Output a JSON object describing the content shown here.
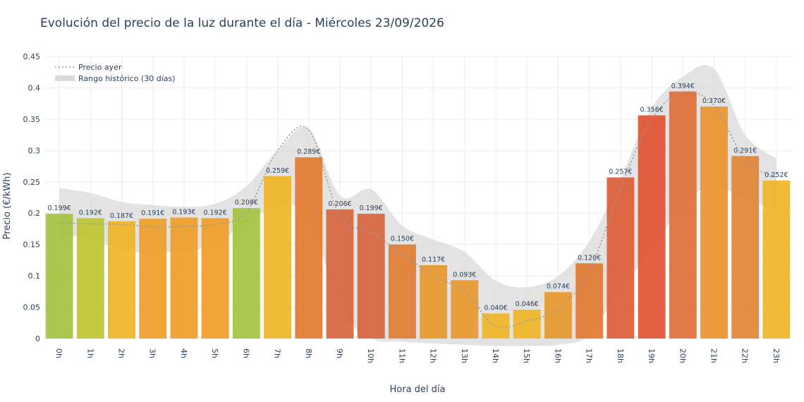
{
  "chart_data": {
    "type": "bar",
    "title": "Evolución del precio de la luz durante el día - Miércoles 23/09/2026",
    "xlabel": "Hora del día",
    "ylabel": "Precio (€/kWh)",
    "ylim": [
      0,
      0.45
    ],
    "yticks": [
      "0",
      "0.05",
      "0.1",
      "0.15",
      "0.2",
      "0.25",
      "0.3",
      "0.35",
      "0.4",
      "0.45"
    ],
    "ytick_values": [
      0,
      0.05,
      0.1,
      0.15,
      0.2,
      0.25,
      0.3,
      0.35,
      0.4,
      0.45
    ],
    "grid": true,
    "legend_position": "top-left",
    "categories": [
      "0h",
      "1h",
      "2h",
      "3h",
      "4h",
      "5h",
      "6h",
      "7h",
      "8h",
      "9h",
      "10h",
      "11h",
      "12h",
      "13h",
      "14h",
      "15h",
      "16h",
      "17h",
      "18h",
      "19h",
      "20h",
      "21h",
      "22h",
      "23h"
    ],
    "values": [
      0.199,
      0.192,
      0.187,
      0.191,
      0.193,
      0.192,
      0.208,
      0.259,
      0.289,
      0.206,
      0.199,
      0.15,
      0.117,
      0.093,
      0.04,
      0.046,
      0.074,
      0.12,
      0.257,
      0.356,
      0.394,
      0.37,
      0.291,
      0.252
    ],
    "bar_labels": [
      "0.199€",
      "0.192€",
      "0.187€",
      "0.191€",
      "0.193€",
      "0.192€",
      "0.208€",
      "0.259€",
      "0.289€",
      "0.206€",
      "0.199€",
      "0.150€",
      "0.117€",
      "0.093€",
      "0.040€",
      "0.046€",
      "0.074€",
      "0.120€",
      "0.257€",
      "0.356€",
      "0.394€",
      "0.370€",
      "0.291€",
      "0.252€"
    ],
    "bar_colors": [
      "#a3c13a",
      "#bcc42e",
      "#eeb420",
      "#ee9b24",
      "#ee9b24",
      "#ee9b24",
      "#a3c13a",
      "#eeb420",
      "#e0782c",
      "#d7603a",
      "#d7603a",
      "#de7a2e",
      "#e89628",
      "#e89628",
      "#eeb420",
      "#eeb420",
      "#e89628",
      "#e0782c",
      "#dc5a32",
      "#e0502c",
      "#e06a32",
      "#eb9028",
      "#e08230",
      "#eeb420"
    ],
    "series": [
      {
        "name": "Precio ayer",
        "style": "dotted-line",
        "color": "#999999",
        "values": [
          0.185,
          0.183,
          0.182,
          0.178,
          0.179,
          0.182,
          0.202,
          0.3,
          0.333,
          0.195,
          0.17,
          0.135,
          0.1,
          0.075,
          0.02,
          0.028,
          0.048,
          0.108,
          0.24,
          0.35,
          0.393,
          0.372,
          0.285,
          0.257
        ]
      },
      {
        "name": "Rango histórico (30 días)",
        "style": "band",
        "color": "#d9d9d9",
        "upper": [
          0.24,
          0.232,
          0.218,
          0.213,
          0.21,
          0.215,
          0.243,
          0.3,
          0.335,
          0.228,
          0.238,
          0.18,
          0.158,
          0.138,
          0.092,
          0.082,
          0.1,
          0.155,
          0.255,
          0.368,
          0.418,
          0.43,
          0.325,
          0.287
        ],
        "lower": [
          0.165,
          0.16,
          0.14,
          0.137,
          0.14,
          0.15,
          0.185,
          0.21,
          0.195,
          0.05,
          0.0,
          -0.005,
          -0.008,
          -0.01,
          -0.012,
          -0.012,
          -0.01,
          0.005,
          0.08,
          0.14,
          0.215,
          0.243,
          0.222,
          0.205
        ]
      }
    ]
  }
}
